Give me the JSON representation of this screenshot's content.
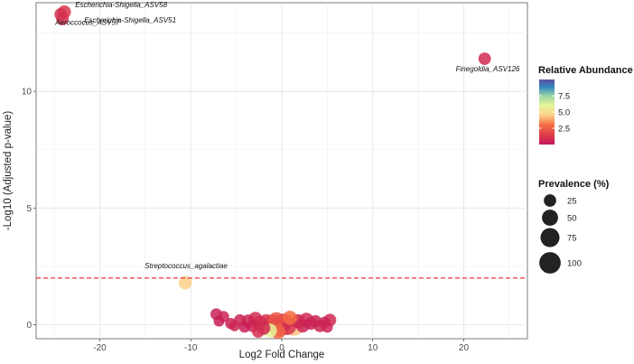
{
  "chart_data": {
    "type": "scatter",
    "title": "",
    "xlabel": "Log2 Fold Change",
    "ylabel": "-Log10 (Adjusted p-value)",
    "xlim": [
      -27,
      27
    ],
    "ylim": [
      -0.6,
      13.8
    ],
    "x_ticks": [
      -20,
      -10,
      0,
      10,
      20
    ],
    "y_ticks": [
      0,
      5,
      10
    ],
    "grid": true,
    "threshold_line": {
      "y": 2.0,
      "color": "#e8202a",
      "style": "dashed"
    },
    "color_legend": {
      "title": "Relative Abundance",
      "ticks": [
        "2.5",
        "5.0",
        "7.5"
      ],
      "tick_values": [
        2.5,
        5.0,
        7.5
      ],
      "range": [
        0,
        10
      ]
    },
    "size_legend": {
      "title": "Prevalence (%)",
      "entries": [
        "25",
        "50",
        "75",
        "100"
      ],
      "entry_values": [
        25,
        50,
        75,
        100
      ]
    },
    "legend_position": "right",
    "labeled_points": [
      {
        "label": "Escherichia-Shigella_ASV58",
        "x": -24.3,
        "y": 13.3,
        "abundance": 1.0,
        "prevalence": 10
      },
      {
        "label": "Escherichia-Shigella_ASV51",
        "x": -24.1,
        "y": 13.1,
        "abundance": 1.0,
        "prevalence": 10
      },
      {
        "label": "Aeroccocus_ASV57",
        "x": -23.9,
        "y": 13.4,
        "abundance": 1.2,
        "prevalence": 12
      },
      {
        "label": "Finegoldia_ASV126",
        "x": 22.3,
        "y": 11.4,
        "abundance": 0.8,
        "prevalence": 10
      },
      {
        "label": "Streptococcus_agalactiae",
        "x": -10.6,
        "y": 1.8,
        "abundance": 4.5,
        "prevalence": 12
      }
    ],
    "points": [
      {
        "x": -7.2,
        "y": 0.45,
        "abundance": 0.4,
        "prevalence": 8
      },
      {
        "x": -6.4,
        "y": 0.35,
        "abundance": 0.5,
        "prevalence": 7
      },
      {
        "x": -6.9,
        "y": 0.15,
        "abundance": 0.3,
        "prevalence": 6
      },
      {
        "x": -5.6,
        "y": 0.05,
        "abundance": 0.4,
        "prevalence": 7
      },
      {
        "x": -5.2,
        "y": -0.05,
        "abundance": 0.6,
        "prevalence": 6
      },
      {
        "x": -4.6,
        "y": 0.2,
        "abundance": 0.5,
        "prevalence": 8
      },
      {
        "x": -4.1,
        "y": -0.1,
        "abundance": 0.3,
        "prevalence": 7
      },
      {
        "x": -3.7,
        "y": 0.15,
        "abundance": 0.6,
        "prevalence": 12
      },
      {
        "x": -3.2,
        "y": -0.05,
        "abundance": 0.5,
        "prevalence": 10
      },
      {
        "x": -2.9,
        "y": 0.25,
        "abundance": 0.8,
        "prevalence": 14
      },
      {
        "x": -2.4,
        "y": 0.05,
        "abundance": 1.0,
        "prevalence": 18
      },
      {
        "x": -2.0,
        "y": -0.15,
        "abundance": 0.7,
        "prevalence": 12
      },
      {
        "x": -1.7,
        "y": 0.1,
        "abundance": 1.2,
        "prevalence": 22
      },
      {
        "x": -1.3,
        "y": -0.25,
        "abundance": 6.0,
        "prevalence": 14
      },
      {
        "x": -1.0,
        "y": 0.05,
        "abundance": 1.5,
        "prevalence": 28
      },
      {
        "x": -0.6,
        "y": 0.2,
        "abundance": 2.2,
        "prevalence": 20
      },
      {
        "x": -0.2,
        "y": -0.1,
        "abundance": 1.8,
        "prevalence": 32
      },
      {
        "x": 0.2,
        "y": 0.1,
        "abundance": 0.9,
        "prevalence": 26
      },
      {
        "x": 0.6,
        "y": -0.05,
        "abundance": 1.1,
        "prevalence": 30
      },
      {
        "x": 1.3,
        "y": 0.0,
        "abundance": 4.3,
        "prevalence": 48
      },
      {
        "x": 1.8,
        "y": 0.15,
        "abundance": 0.6,
        "prevalence": 14
      },
      {
        "x": 2.3,
        "y": -0.05,
        "abundance": 0.5,
        "prevalence": 12
      },
      {
        "x": 2.7,
        "y": 0.2,
        "abundance": 0.7,
        "prevalence": 16
      },
      {
        "x": 3.2,
        "y": 0.05,
        "abundance": 0.4,
        "prevalence": 10
      },
      {
        "x": 3.7,
        "y": 0.15,
        "abundance": 0.5,
        "prevalence": 9
      },
      {
        "x": 4.2,
        "y": -0.05,
        "abundance": 0.6,
        "prevalence": 10
      },
      {
        "x": 4.7,
        "y": 0.1,
        "abundance": 0.4,
        "prevalence": 8
      },
      {
        "x": 5.3,
        "y": 0.2,
        "abundance": 0.7,
        "prevalence": 10
      },
      {
        "x": 5.0,
        "y": -0.1,
        "abundance": 0.5,
        "prevalence": 7
      },
      {
        "x": -2.6,
        "y": -0.3,
        "abundance": 0.9,
        "prevalence": 9
      },
      {
        "x": 0.9,
        "y": 0.3,
        "abundance": 3.0,
        "prevalence": 14
      },
      {
        "x": -0.4,
        "y": -0.3,
        "abundance": 2.8,
        "prevalence": 16
      }
    ]
  }
}
